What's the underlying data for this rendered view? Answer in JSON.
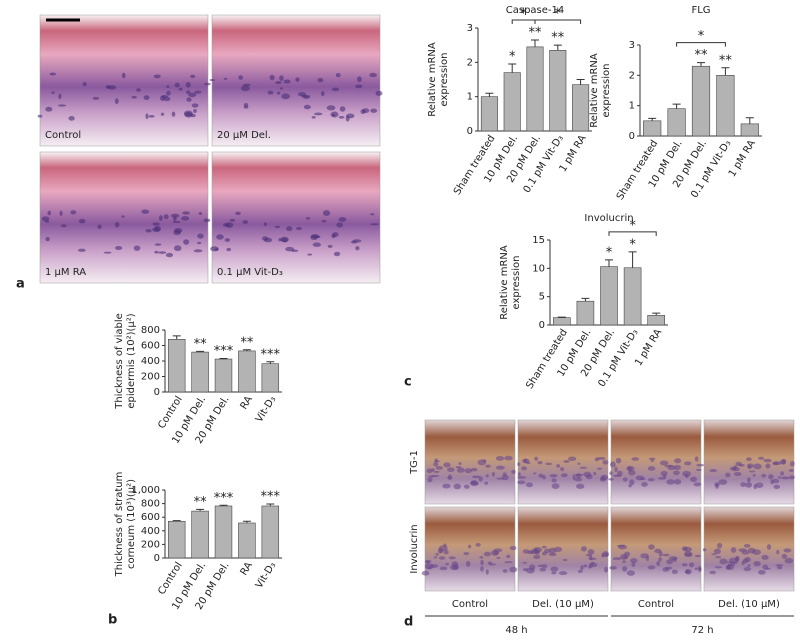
{
  "panel_letters": [
    "a",
    "b",
    "c",
    "d"
  ],
  "panel_a": {
    "labels": [
      "Control",
      "20 μM Del.",
      "1 μM RA",
      "0.1 μM Vit-D₃"
    ]
  },
  "panel_d": {
    "rows": [
      "TG-1",
      "Involucrin"
    ],
    "columns": [
      "Control",
      "Del. (10 μM)",
      "Control",
      "Del. (10 μM)"
    ],
    "times": [
      "48 h",
      "72 h"
    ]
  },
  "chart_data": [
    {
      "type": "bar",
      "title": "Caspase-14",
      "ylabel": [
        "Relative mRNA",
        "expression"
      ],
      "categories": [
        "Sham treated",
        "10 pM Del.",
        "20 pM Del.",
        "0.1 pM Vit-D₃",
        "1 pM RA"
      ],
      "values": [
        1.0,
        1.7,
        2.45,
        2.35,
        1.35
      ],
      "errors": [
        0.1,
        0.25,
        0.2,
        0.15,
        0.15
      ],
      "annotations": [
        null,
        "*",
        "**",
        "**",
        null
      ],
      "brackets": [
        {
          "between": [
            "10 pM Del.",
            "20 pM Del."
          ],
          "label": "*"
        },
        {
          "between": [
            "20 pM Del.",
            "1 pM RA"
          ],
          "label": "*"
        }
      ],
      "color": "#b3b3b3",
      "ylim": [
        0,
        3
      ],
      "yticks": [
        0,
        1,
        2,
        3
      ]
    },
    {
      "type": "bar",
      "title": "FLG",
      "ylabel": [
        "Relative mRNA",
        "expression"
      ],
      "categories": [
        "Sham treated",
        "10 pM Del.",
        "20 pM Del.",
        "0.1 pM Vit-D₃",
        "1 pM RA"
      ],
      "values": [
        0.5,
        0.9,
        2.3,
        2.0,
        0.4
      ],
      "errors": [
        0.08,
        0.15,
        0.12,
        0.25,
        0.2
      ],
      "annotations": [
        null,
        null,
        "**",
        "**",
        null
      ],
      "brackets": [
        {
          "between": [
            "10 pM Del.",
            "0.1 pM Vit-D₃"
          ],
          "label": "*"
        }
      ],
      "color": "#b3b3b3",
      "ylim": [
        0,
        3
      ],
      "yticks": [
        0,
        1,
        2,
        3
      ]
    },
    {
      "type": "bar",
      "title": "Involucrin",
      "ylabel": [
        "Relative mRNA",
        "expression"
      ],
      "categories": [
        "Sham treated",
        "10 pM Del.",
        "20 pM Del.",
        "0.1 pM Vit-D₃",
        "1 pM RA"
      ],
      "values": [
        1.3,
        4.2,
        10.3,
        10.1,
        1.7
      ],
      "errors": [
        0.1,
        0.5,
        1.2,
        2.8,
        0.4
      ],
      "annotations": [
        null,
        null,
        "*",
        "*",
        null
      ],
      "brackets": [
        {
          "between": [
            "20 pM Del.",
            "1 pM RA"
          ],
          "label": "*"
        }
      ],
      "color": "#b3b3b3",
      "ylim": [
        0,
        15
      ],
      "yticks": [
        0,
        5,
        10,
        15
      ]
    },
    {
      "type": "bar",
      "ylabel": [
        "Thickness of viable",
        "epidermis (10²)(μ²)"
      ],
      "categories": [
        "Control",
        "10 pM Del.",
        "20 pM Del.",
        "RA",
        "Vit-D₃"
      ],
      "values": [
        680,
        515,
        425,
        530,
        365
      ],
      "errors": [
        45,
        10,
        8,
        15,
        25
      ],
      "annotations": [
        null,
        "**",
        "***",
        "**",
        "***"
      ],
      "brackets": [],
      "color": "#b3b3b3",
      "ylim": [
        0,
        800
      ],
      "yticks": [
        0,
        200,
        400,
        600,
        800
      ]
    },
    {
      "type": "bar",
      "ylabel": [
        "Thickness of stratum",
        "corneum (10³)(μ²)"
      ],
      "categories": [
        "Control",
        "10 pM Del.",
        "20 pM Del.",
        "RA",
        "Vit-D₃"
      ],
      "values": [
        540,
        690,
        765,
        515,
        765
      ],
      "errors": [
        10,
        25,
        10,
        25,
        30
      ],
      "annotations": [
        null,
        "**",
        "***",
        null,
        "***"
      ],
      "brackets": [],
      "color": "#b3b3b3",
      "ylim": [
        0,
        1000
      ],
      "yticks": [
        0,
        200,
        400,
        600,
        800,
        {
          "value": 1000,
          "label": "1,000"
        }
      ]
    }
  ]
}
